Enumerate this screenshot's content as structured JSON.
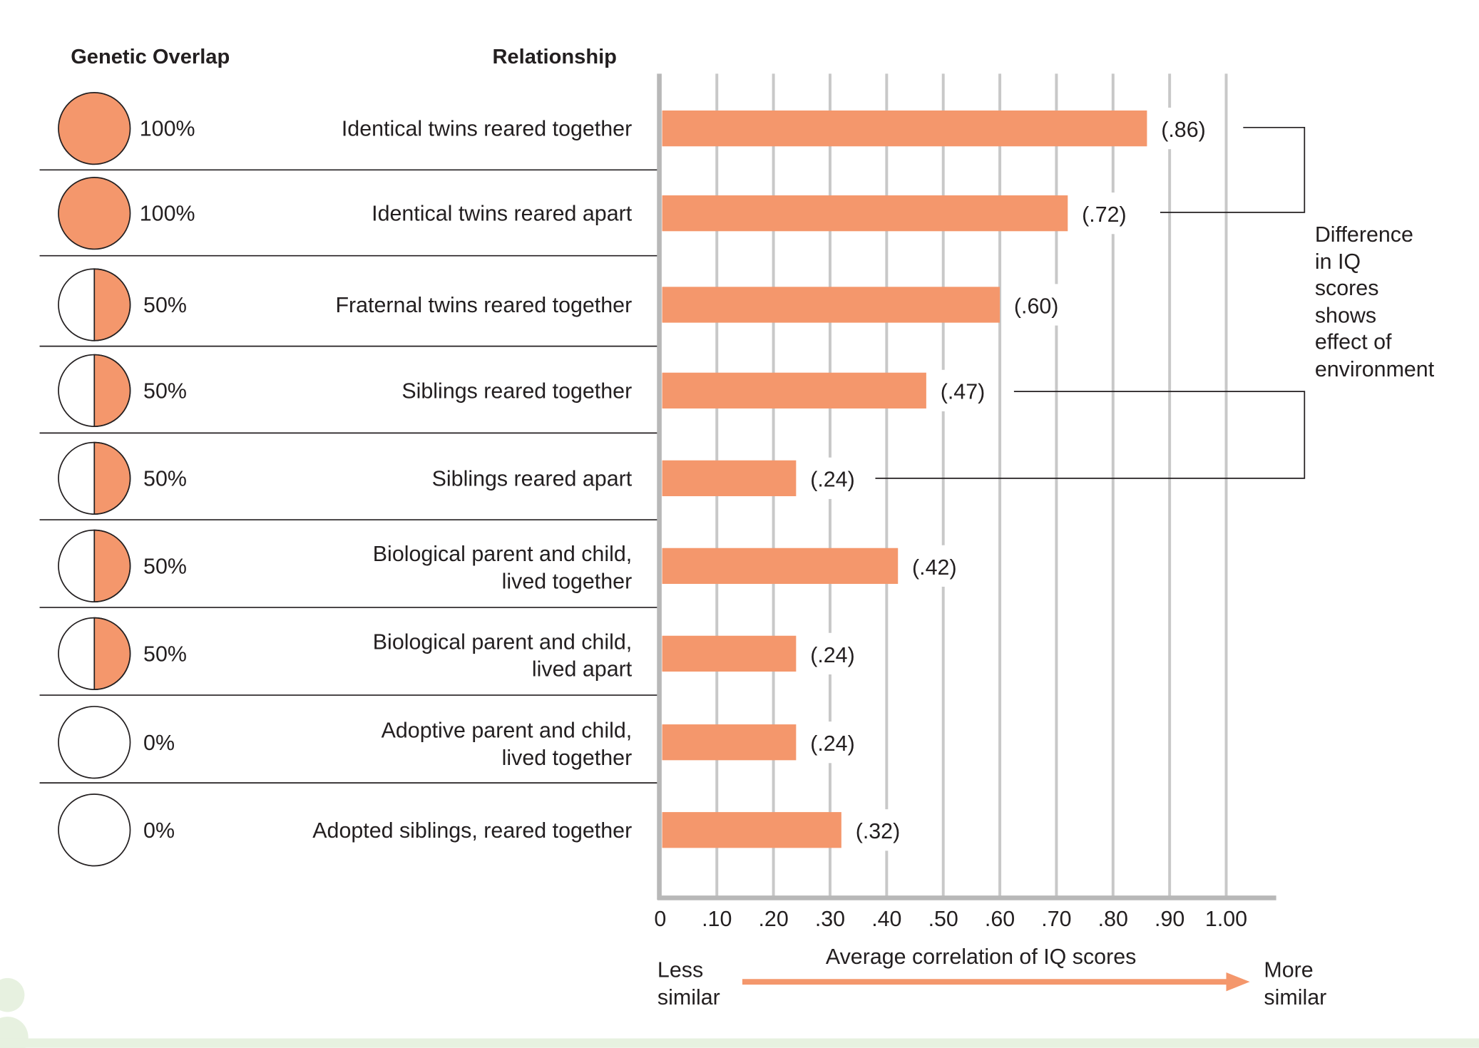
{
  "colors": {
    "bar": "#f4976c",
    "grid": "#c8c8c8",
    "axis": "#b8b8b8",
    "green": "#e7f1e0"
  },
  "headers": {
    "overlap": "Genetic Overlap",
    "relationship": "Relationship"
  },
  "annotation": [
    "Difference",
    "in IQ",
    "scores",
    "shows",
    "effect of",
    "environment"
  ],
  "scale": {
    "less": [
      "Less",
      "similar"
    ],
    "more": [
      "More",
      "similar"
    ]
  },
  "chart_data": {
    "type": "bar",
    "orientation": "horizontal",
    "xlabel": "Average correlation of IQ scores",
    "xlim": [
      0,
      1
    ],
    "xticks": [
      "0",
      ".10",
      ".20",
      ".30",
      ".40",
      ".50",
      ".60",
      ".70",
      ".80",
      ".90",
      "1.00"
    ],
    "grid": true,
    "rows": [
      {
        "overlap": "100%",
        "fill": 1,
        "label": [
          "Identical twins reared together"
        ],
        "value": 0.86,
        "value_label": "(.86)"
      },
      {
        "overlap": "100%",
        "fill": 1,
        "label": [
          "Identical twins reared apart"
        ],
        "value": 0.72,
        "value_label": "(.72)"
      },
      {
        "overlap": "50%",
        "fill": 0.5,
        "label": [
          "Fraternal twins reared together"
        ],
        "value": 0.6,
        "value_label": "(.60)"
      },
      {
        "overlap": "50%",
        "fill": 0.5,
        "label": [
          "Siblings reared together"
        ],
        "value": 0.47,
        "value_label": "(.47)"
      },
      {
        "overlap": "50%",
        "fill": 0.5,
        "label": [
          "Siblings reared apart"
        ],
        "value": 0.24,
        "value_label": "(.24)"
      },
      {
        "overlap": "50%",
        "fill": 0.5,
        "label": [
          "Biological parent and child,",
          "lived together"
        ],
        "value": 0.42,
        "value_label": "(.42)"
      },
      {
        "overlap": "50%",
        "fill": 0.5,
        "label": [
          "Biological parent and child,",
          "lived apart"
        ],
        "value": 0.24,
        "value_label": "(.24)"
      },
      {
        "overlap": "0%",
        "fill": 0,
        "label": [
          "Adoptive parent and child,",
          "lived together"
        ],
        "value": 0.24,
        "value_label": "(.24)"
      },
      {
        "overlap": "0%",
        "fill": 0,
        "label": [
          "Adopted siblings, reared together"
        ],
        "value": 0.32,
        "value_label": "(.32)"
      }
    ]
  }
}
